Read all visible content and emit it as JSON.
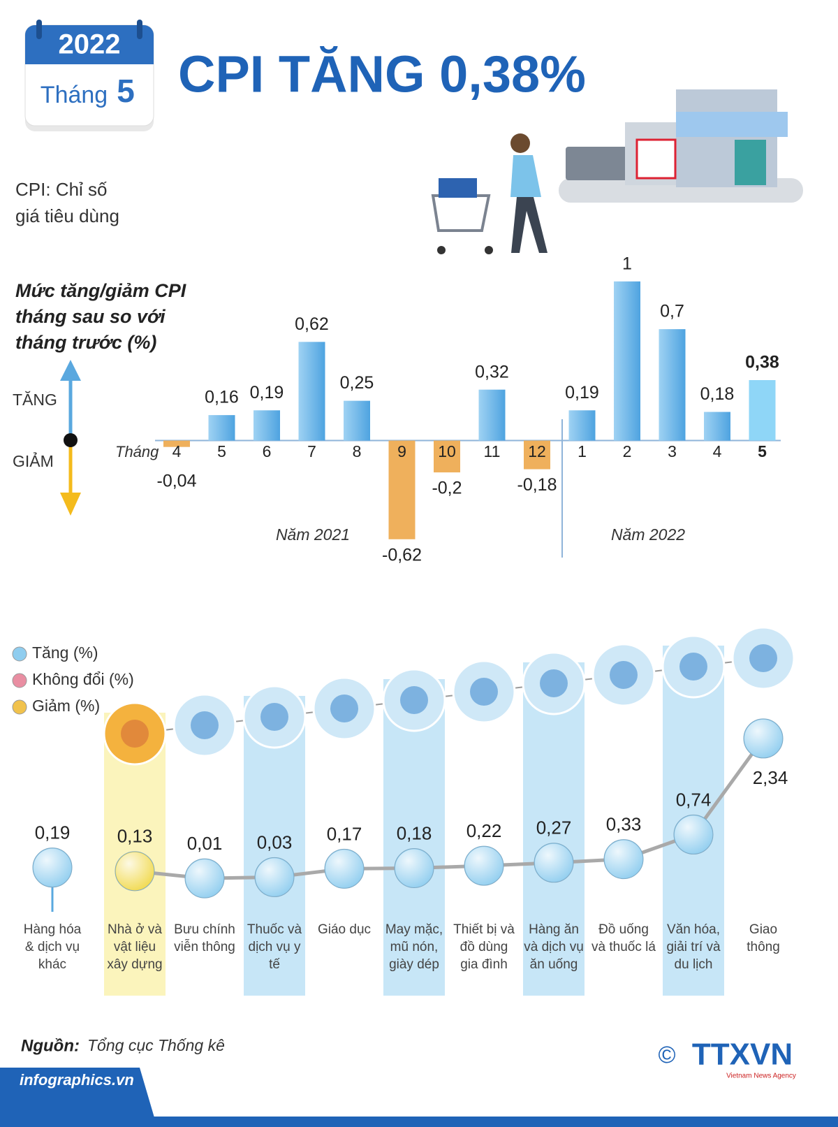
{
  "header": {
    "year": "2022",
    "month_label": "Tháng",
    "month": "5",
    "title": "CPI TĂNG 0,38%",
    "definition": [
      "CPI: Chỉ số",
      "giá tiêu dùng"
    ]
  },
  "chart_data": [
    {
      "type": "bar",
      "title": [
        "Mức tăng/giảm CPI",
        "tháng sau so với",
        "tháng trước (%)"
      ],
      "up_label": "TĂNG",
      "down_label": "GIẢM",
      "x_label": "Tháng",
      "categories": [
        "4",
        "5",
        "6",
        "7",
        "8",
        "9",
        "10",
        "11",
        "12",
        "1",
        "2",
        "3",
        "4",
        "5"
      ],
      "values": [
        -0.04,
        0.16,
        0.19,
        0.62,
        0.25,
        -0.62,
        -0.2,
        0.32,
        -0.18,
        0.19,
        1,
        0.7,
        0.18,
        0.38
      ],
      "value_labels": [
        "-0,04",
        "0,16",
        "0,19",
        "0,62",
        "0,25",
        "-0,62",
        "-0,2",
        "0,32",
        "-0,18",
        "0,19",
        "1",
        "0,7",
        "0,18",
        "0,38"
      ],
      "year_labels": [
        "Năm 2021",
        "Năm 2022"
      ],
      "ylim": [
        -0.7,
        1.1
      ],
      "increase_color": "#5aade6",
      "decrease_color": "#efb05c",
      "highlight_color": "#8fd6f7"
    },
    {
      "type": "line",
      "legend": [
        {
          "name": "Tăng (%)",
          "color": "#8fcdef"
        },
        {
          "name": "Không đổi (%)",
          "color": "#e98ea2"
        },
        {
          "name": "Giảm (%)",
          "color": "#f1c24c"
        }
      ],
      "categories": [
        "Hàng hóa & dịch vụ khác",
        "Nhà ở và vật liệu xây dựng",
        "Bưu chính viễn thông",
        "Thuốc và dịch vụ y tế",
        "Giáo dục",
        "May mặc, mũ nón, giày dép",
        "Thiết bị và đồ dùng gia đình",
        "Hàng ăn và dịch vụ ăn uống",
        "Đồ uống và thuốc lá",
        "Văn hóa, giải trí và du lịch",
        "Giao thông"
      ],
      "values": [
        0.19,
        0.13,
        0.01,
        0.03,
        0.17,
        0.18,
        0.22,
        0.27,
        0.33,
        0.74,
        2.34
      ],
      "value_labels": [
        "0,19",
        "0,13",
        "0,01",
        "0,03",
        "0,17",
        "0,18",
        "0,22",
        "0,27",
        "0,33",
        "0,74",
        "2,34"
      ],
      "point_colors": [
        "#8fcdef",
        "#f1d94c",
        "#8fcdef",
        "#8fcdef",
        "#8fcdef",
        "#8fcdef",
        "#8fcdef",
        "#8fcdef",
        "#8fcdef",
        "#8fcdef",
        "#8fcdef"
      ],
      "ylim": [
        0,
        2.7
      ]
    }
  ],
  "footer": {
    "source_label": "Nguồn:",
    "source": "Tổng cục Thống kê",
    "website": "infographics.vn",
    "copyright": "©",
    "agency": "TTXVN",
    "agency_sub": "Vietnam News Agency"
  }
}
